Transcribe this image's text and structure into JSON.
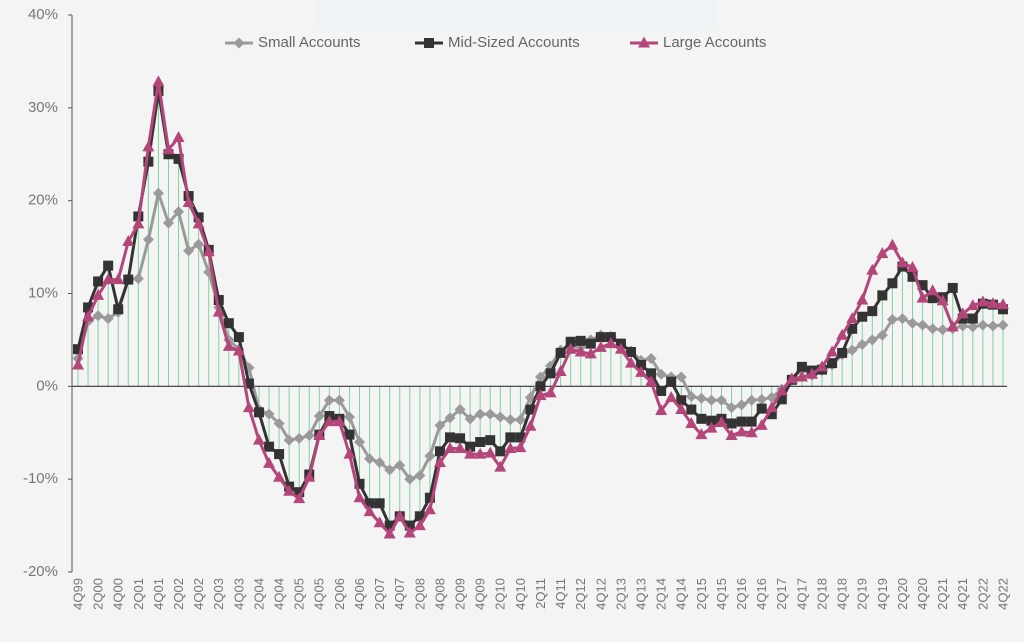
{
  "chart_data": {
    "type": "line",
    "categories": [
      "4Q99",
      null,
      "2Q00",
      null,
      "4Q00",
      null,
      "2Q01",
      null,
      "4Q01",
      null,
      "2Q02",
      null,
      "4Q02",
      null,
      "2Q03",
      null,
      "4Q03",
      null,
      "2Q04",
      null,
      "4Q04",
      null,
      "2Q05",
      null,
      "4Q05",
      null,
      "2Q06",
      null,
      "4Q06",
      null,
      "2Q07",
      null,
      "4Q07",
      null,
      "2Q08",
      null,
      "4Q08",
      null,
      "2Q09",
      null,
      "4Q09",
      null,
      "2Q10",
      null,
      "4Q10",
      null,
      "2Q11",
      null,
      "4Q11",
      null,
      "2Q12",
      null,
      "4Q12",
      null,
      "2Q13",
      null,
      "4Q13",
      null,
      "2Q14",
      null,
      "4Q14",
      null,
      "2Q15",
      null,
      "4Q15",
      null,
      "2Q16",
      null,
      "4Q16",
      null,
      "2Q17",
      null,
      "4Q17",
      null,
      "2Q18",
      null,
      "4Q18",
      null,
      "2Q19",
      null,
      "4Q19",
      null,
      "2Q20",
      null,
      "4Q20",
      null,
      "2Q21",
      null,
      "4Q21",
      null,
      "2Q22",
      null,
      "4Q22"
    ],
    "series": [
      {
        "name": "Small Accounts",
        "color": "#9a9a9a",
        "marker": "diamond",
        "values": [
          3,
          7,
          7.6,
          7.3,
          8,
          11.5,
          11.6,
          15.8,
          20.8,
          17.6,
          18.8,
          14.6,
          15.3,
          12.3,
          8.5,
          5,
          4,
          2,
          -2.5,
          -3,
          -4,
          -5.8,
          -5.6,
          -5.3,
          -3.2,
          -1.5,
          -1.5,
          -3.3,
          -6,
          -7.8,
          -8.2,
          -9,
          -8.5,
          -10,
          -9.6,
          -7.5,
          -4.2,
          -3.4,
          -2.5,
          -3.5,
          -3,
          -3,
          -3.3,
          -3.6,
          -3.6,
          -1.2,
          1,
          2.2,
          3.9,
          4.3,
          4.2,
          5,
          5.5,
          5.4,
          4.6,
          3.8,
          2.8,
          3,
          1.3,
          1,
          1,
          -1.1,
          -1.3,
          -1.5,
          -1.5,
          -2.3,
          -2,
          -1.5,
          -1.4,
          -1.2,
          -0.3,
          0.8,
          1.8,
          1.2,
          1.7,
          2.3,
          3.4,
          3.9,
          4.5,
          5,
          5.5,
          7.2,
          7.3,
          6.8,
          6.6,
          6.2,
          6.1,
          6.2,
          6.5,
          6.4,
          6.6,
          6.5,
          6.6
        ]
      },
      {
        "name": "Mid-Sized Accounts",
        "color": "#333333",
        "marker": "square",
        "values": [
          4,
          8.5,
          11.3,
          13,
          8.3,
          11.5,
          18.3,
          24.2,
          31.8,
          25,
          24.5,
          20.5,
          18.2,
          14.7,
          9.3,
          6.8,
          5.3,
          0.3,
          -2.8,
          -6.5,
          -7.3,
          -10.8,
          -11.4,
          -9.5,
          -5.2,
          -3.2,
          -3.5,
          -5.2,
          -10.5,
          -12.6,
          -12.6,
          -15,
          -14,
          -15,
          -14,
          -12,
          -7,
          -5.5,
          -5.6,
          -6.5,
          -6,
          -5.8,
          -7,
          -5.5,
          -5.5,
          -2.5,
          0,
          1.4,
          3.6,
          4.8,
          4.9,
          4.6,
          5.3,
          5.3,
          4.6,
          3.7,
          2.3,
          1.4,
          -0.5,
          0.5,
          -1.5,
          -2.5,
          -3.5,
          -3.7,
          -3.5,
          -4,
          -3.8,
          -3.8,
          -2.4,
          -3,
          -1.4,
          0.7,
          2.1,
          1.7,
          1.8,
          2.5,
          3.6,
          6.2,
          7.5,
          8.1,
          9.8,
          11.1,
          12.9,
          11.8,
          10.9,
          9.5,
          9.6,
          10.6,
          7.3,
          7.3,
          8.9,
          8.8,
          8.3
        ]
      },
      {
        "name": "Large Accounts",
        "color": "#b4467a",
        "marker": "triangle",
        "values": [
          2.3,
          7.5,
          9.8,
          11.5,
          11.5,
          15.6,
          17.5,
          25.8,
          32.8,
          25.5,
          26.8,
          19.8,
          17.5,
          14.5,
          8,
          4.3,
          3.8,
          -2.3,
          -5.8,
          -8.3,
          -9.8,
          -11.3,
          -12.1,
          -9.8,
          -5.3,
          -3.8,
          -3.8,
          -7.3,
          -12,
          -13.5,
          -14.7,
          -15.9,
          -14,
          -15.8,
          -15,
          -13.3,
          -8.2,
          -6.7,
          -6.7,
          -7.3,
          -7.3,
          -7.2,
          -8.7,
          -6.7,
          -6.6,
          -4.3,
          -1,
          -0.7,
          1.6,
          4,
          3.7,
          3.5,
          4.2,
          4.6,
          4,
          2.5,
          1.5,
          0.5,
          -2.6,
          -1.2,
          -2.5,
          -4,
          -5.2,
          -4.5,
          -3.9,
          -5.3,
          -4.9,
          -5,
          -4.2,
          -2.3,
          -0.5,
          0.8,
          1.0,
          1.3,
          2.1,
          3.7,
          5.5,
          7.3,
          9.3,
          12.5,
          14.3,
          15.2,
          13.3,
          12.8,
          9.5,
          10.3,
          9.2,
          6.4,
          7.8,
          8.7,
          9.1,
          8.9,
          8.8
        ]
      }
    ],
    "drop_line_color": "#7fd39a",
    "ylim": [
      -20,
      40
    ],
    "yticks": [
      {
        "value": -20,
        "label": "-20%"
      },
      {
        "value": -10,
        "label": "-10%"
      },
      {
        "value": 0,
        "label": "0%"
      },
      {
        "value": 10,
        "label": "10%"
      },
      {
        "value": 20,
        "label": "20%"
      },
      {
        "value": 30,
        "label": "30%"
      },
      {
        "value": 40,
        "label": "40%"
      }
    ],
    "legend": "top"
  }
}
